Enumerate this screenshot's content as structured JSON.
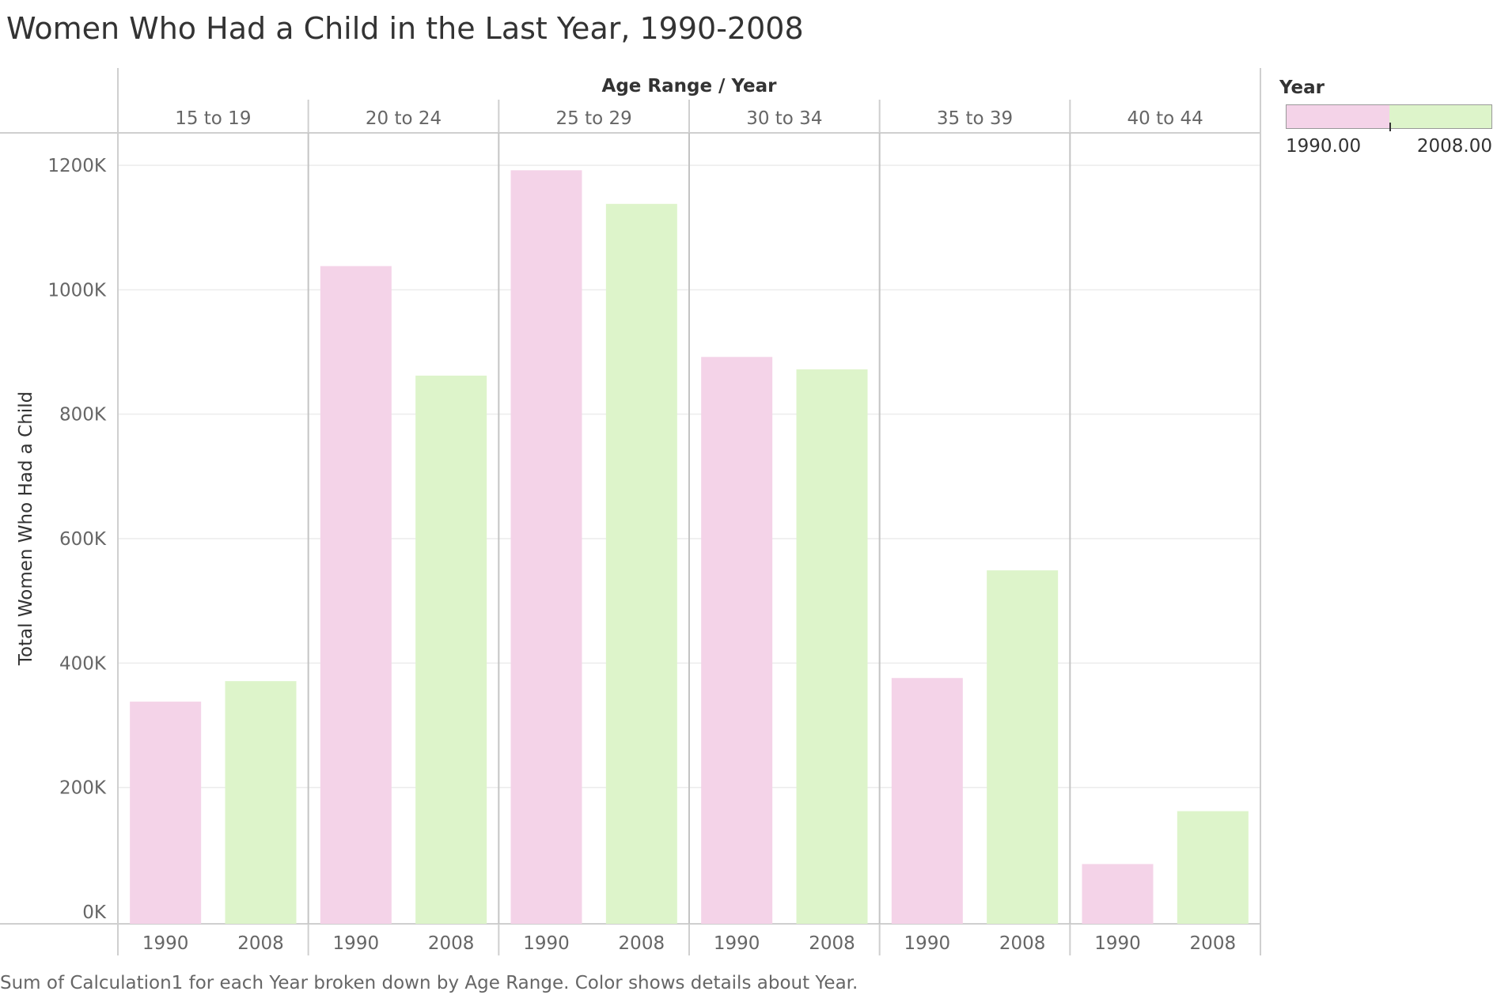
{
  "chart_data": {
    "type": "bar",
    "title": "Women Who Had a Child in the Last Year, 1990-2008",
    "header": "Age Range  /  Year",
    "ylabel": "Total Women Who Had a Child",
    "ylim": [
      0,
      1250000
    ],
    "yticks": [
      0,
      200000,
      400000,
      600000,
      800000,
      1000000,
      1200000
    ],
    "ytick_labels": [
      "0K",
      "200K",
      "400K",
      "600K",
      "800K",
      "1000K",
      "1200K"
    ],
    "grid": true,
    "groups": [
      {
        "label": "15 to 19",
        "bars": [
          {
            "year": "1990",
            "value": 338000
          },
          {
            "year": "2008",
            "value": 371000
          }
        ]
      },
      {
        "label": "20 to 24",
        "bars": [
          {
            "year": "1990",
            "value": 1038000
          },
          {
            "year": "2008",
            "value": 862000
          }
        ]
      },
      {
        "label": "25 to 29",
        "bars": [
          {
            "year": "1990",
            "value": 1192000
          },
          {
            "year": "2008",
            "value": 1138000
          }
        ]
      },
      {
        "label": "30 to 34",
        "bars": [
          {
            "year": "1990",
            "value": 892000
          },
          {
            "year": "2008",
            "value": 872000
          }
        ]
      },
      {
        "label": "35 to 39",
        "bars": [
          {
            "year": "1990",
            "value": 376000
          },
          {
            "year": "2008",
            "value": 549000
          }
        ]
      },
      {
        "label": "40 to 44",
        "bars": [
          {
            "year": "1990",
            "value": 77000
          },
          {
            "year": "2008",
            "value": 162000
          }
        ]
      }
    ],
    "colors": {
      "1990": "#f4d3e8",
      "2008": "#ddf4ca"
    },
    "legend": {
      "title": "Year",
      "min_label": "1990.00",
      "max_label": "2008.00",
      "placement": "right"
    },
    "caption": "Sum of Calculation1 for each Year broken down by Age Range.  Color shows details about Year."
  }
}
